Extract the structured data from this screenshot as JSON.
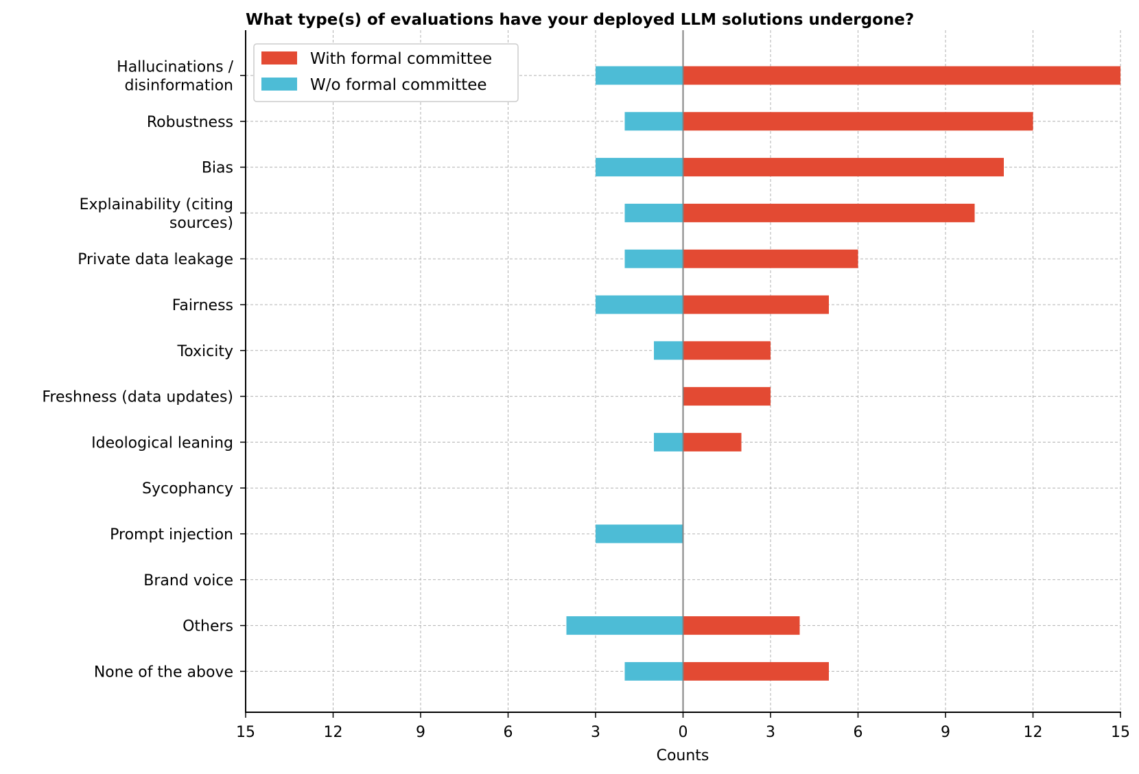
{
  "chart_data": {
    "type": "bar",
    "orientation": "horizontal-diverging",
    "title": "What type(s) of evaluations have your deployed LLM solutions undergone?",
    "xlabel": "Counts",
    "ylabel": "",
    "xlim": [
      -15,
      15
    ],
    "xticks": [
      -15,
      -12,
      -9,
      -6,
      -3,
      0,
      3,
      6,
      9,
      12,
      15
    ],
    "xtick_labels": [
      "15",
      "12",
      "9",
      "6",
      "3",
      "0",
      "3",
      "6",
      "9",
      "12",
      "15"
    ],
    "grid": true,
    "legend_position": "top-left",
    "categories": [
      [
        "Hallucinations /",
        "disinformation"
      ],
      [
        "Robustness"
      ],
      [
        "Bias"
      ],
      [
        "Explainability (citing",
        "sources)"
      ],
      [
        "Private data leakage"
      ],
      [
        "Fairness"
      ],
      [
        "Toxicity"
      ],
      [
        "Freshness (data updates)"
      ],
      [
        "Ideological leaning"
      ],
      [
        "Sycophancy"
      ],
      [
        "Prompt injection"
      ],
      [
        "Brand voice"
      ],
      [
        "Others"
      ],
      [
        "None of the above"
      ]
    ],
    "series": [
      {
        "name": "With formal committee",
        "color": "#e34a33",
        "direction": "positive",
        "values": [
          15,
          12,
          11,
          10,
          6,
          5,
          3,
          3,
          2,
          0,
          0,
          0,
          4,
          5
        ]
      },
      {
        "name": "W/o formal committee",
        "color": "#4dbcd6",
        "direction": "negative",
        "values": [
          3,
          2,
          3,
          2,
          2,
          3,
          1,
          0,
          1,
          0,
          3,
          0,
          4,
          2
        ]
      }
    ]
  }
}
